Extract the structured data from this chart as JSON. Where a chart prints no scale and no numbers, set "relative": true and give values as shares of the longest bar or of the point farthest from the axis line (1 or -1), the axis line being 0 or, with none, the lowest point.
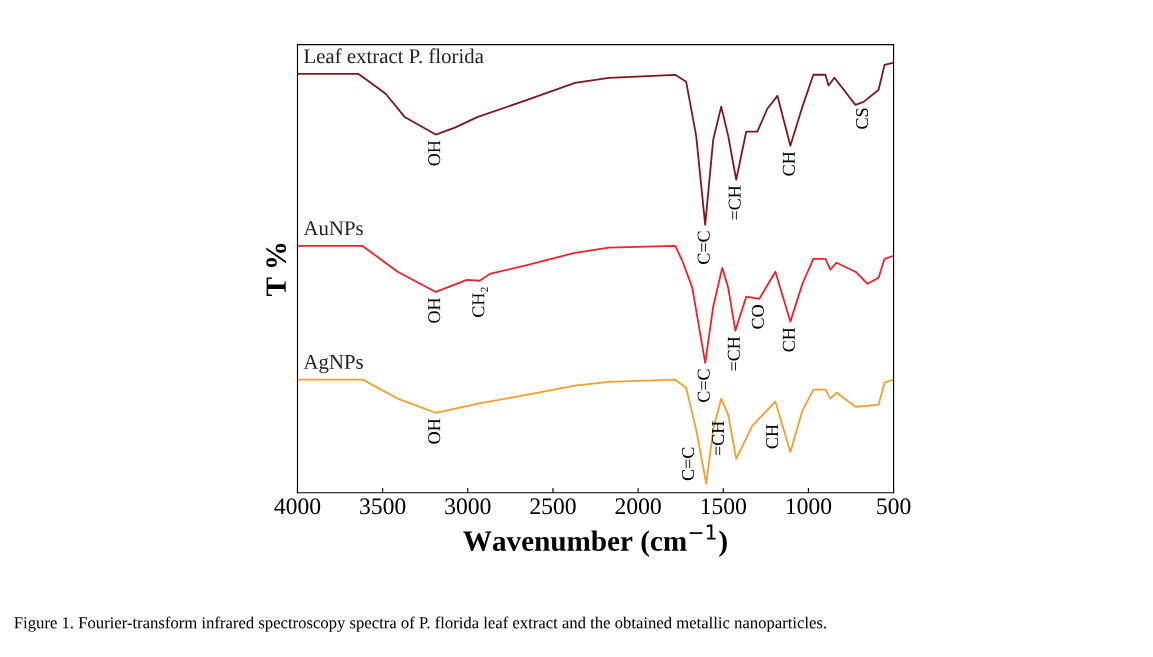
{
  "chart_data": {
    "type": "line",
    "relative": true,
    "xlabel": "Wavenumber (cm$^{−1}$)",
    "ylabel": "T %",
    "xlim": [
      4000,
      500
    ],
    "xticks": [
      4000,
      3500,
      3000,
      2500,
      2000,
      1500,
      1000,
      500
    ],
    "tick_labels": "x",
    "grid": false,
    "legend": false,
    "marker": "none",
    "line_style": "solid",
    "series": [
      {
        "name": "Leaf extract P. florida",
        "color": "#7b1a1e",
        "x": [
          4000,
          3959,
          3641,
          3482,
          3371,
          3188,
          3076,
          2941,
          2647,
          2371,
          2171,
          1782,
          1718,
          1659,
          1606,
          1559,
          1512,
          1471,
          1424,
          1365,
          1300,
          1241,
          1182,
          1106,
          1035,
          971,
          900,
          882,
          847,
          724,
          676,
          588,
          553,
          500
        ],
        "values": [
          0.974,
          0.974,
          0.974,
          0.928,
          0.874,
          0.833,
          0.849,
          0.874,
          0.914,
          0.953,
          0.965,
          0.972,
          0.956,
          0.83,
          0.623,
          0.821,
          0.898,
          0.83,
          0.728,
          0.84,
          0.84,
          0.893,
          0.923,
          0.807,
          0.898,
          0.972,
          0.972,
          0.947,
          0.965,
          0.902,
          0.909,
          0.937,
          0.995,
          1.0
        ]
      },
      {
        "name": "AuNPs",
        "color": "#e8252a",
        "x": [
          4000,
          3959,
          3618,
          3412,
          3188,
          3006,
          2929,
          2871,
          2647,
          2371,
          2171,
          1782,
          1741,
          1682,
          1606,
          1559,
          1506,
          1471,
          1429,
          1365,
          1288,
          1194,
          1106,
          1035,
          971,
          900,
          871,
          835,
          724,
          653,
          588,
          553,
          500
        ],
        "values": [
          0.574,
          0.574,
          0.574,
          0.514,
          0.467,
          0.495,
          0.493,
          0.509,
          0.53,
          0.558,
          0.57,
          0.574,
          0.54,
          0.477,
          0.302,
          0.433,
          0.523,
          0.477,
          0.377,
          0.456,
          0.451,
          0.514,
          0.398,
          0.486,
          0.544,
          0.544,
          0.519,
          0.535,
          0.514,
          0.486,
          0.5,
          0.544,
          0.551
        ]
      },
      {
        "name": "AgNPs",
        "color": "#f0a030",
        "x": [
          4000,
          3959,
          3618,
          3412,
          3188,
          2918,
          2647,
          2371,
          2171,
          1782,
          1718,
          1659,
          1600,
          1559,
          1512,
          1471,
          1424,
          1329,
          1194,
          1106,
          1035,
          971,
          900,
          871,
          835,
          724,
          653,
          588,
          553,
          500
        ],
        "values": [
          0.263,
          0.263,
          0.263,
          0.219,
          0.186,
          0.209,
          0.228,
          0.249,
          0.258,
          0.263,
          0.244,
          0.147,
          0.021,
          0.147,
          0.219,
          0.181,
          0.079,
          0.156,
          0.212,
          0.095,
          0.191,
          0.24,
          0.24,
          0.219,
          0.233,
          0.2,
          0.202,
          0.205,
          0.256,
          0.263
        ]
      }
    ],
    "annotations": [
      {
        "text": "OH",
        "x": 3188,
        "y": 0.833
      },
      {
        "text": "C=C",
        "x": 1606,
        "y": 0.623
      },
      {
        "text": "=CH",
        "x": 1424,
        "y": 0.728
      },
      {
        "text": "CH",
        "x": 1106,
        "y": 0.807
      },
      {
        "text": "CS",
        "x": 676,
        "y": 0.909
      },
      {
        "text": "OH",
        "x": 3188,
        "y": 0.467
      },
      {
        "text": "CH₂",
        "x": 2929,
        "y": 0.493
      },
      {
        "text": "C=C",
        "x": 1606,
        "y": 0.302
      },
      {
        "text": "=CH",
        "x": 1429,
        "y": 0.377
      },
      {
        "text": "CO",
        "x": 1288,
        "y": 0.451
      },
      {
        "text": "CH",
        "x": 1106,
        "y": 0.398
      },
      {
        "text": "OH",
        "x": 3188,
        "y": 0.186
      },
      {
        "text": "C=C",
        "x": 1600,
        "y": 0.021
      },
      {
        "text": "=CH",
        "x": 1424,
        "y": 0.079
      },
      {
        "text": "CH",
        "x": 1106,
        "y": 0.095
      },
      "Figure 1. Fourier-transform infrared spectroscopy spectra of P. florida leaf extract and the obtained metallic nanoparticles."
    ]
  }
}
